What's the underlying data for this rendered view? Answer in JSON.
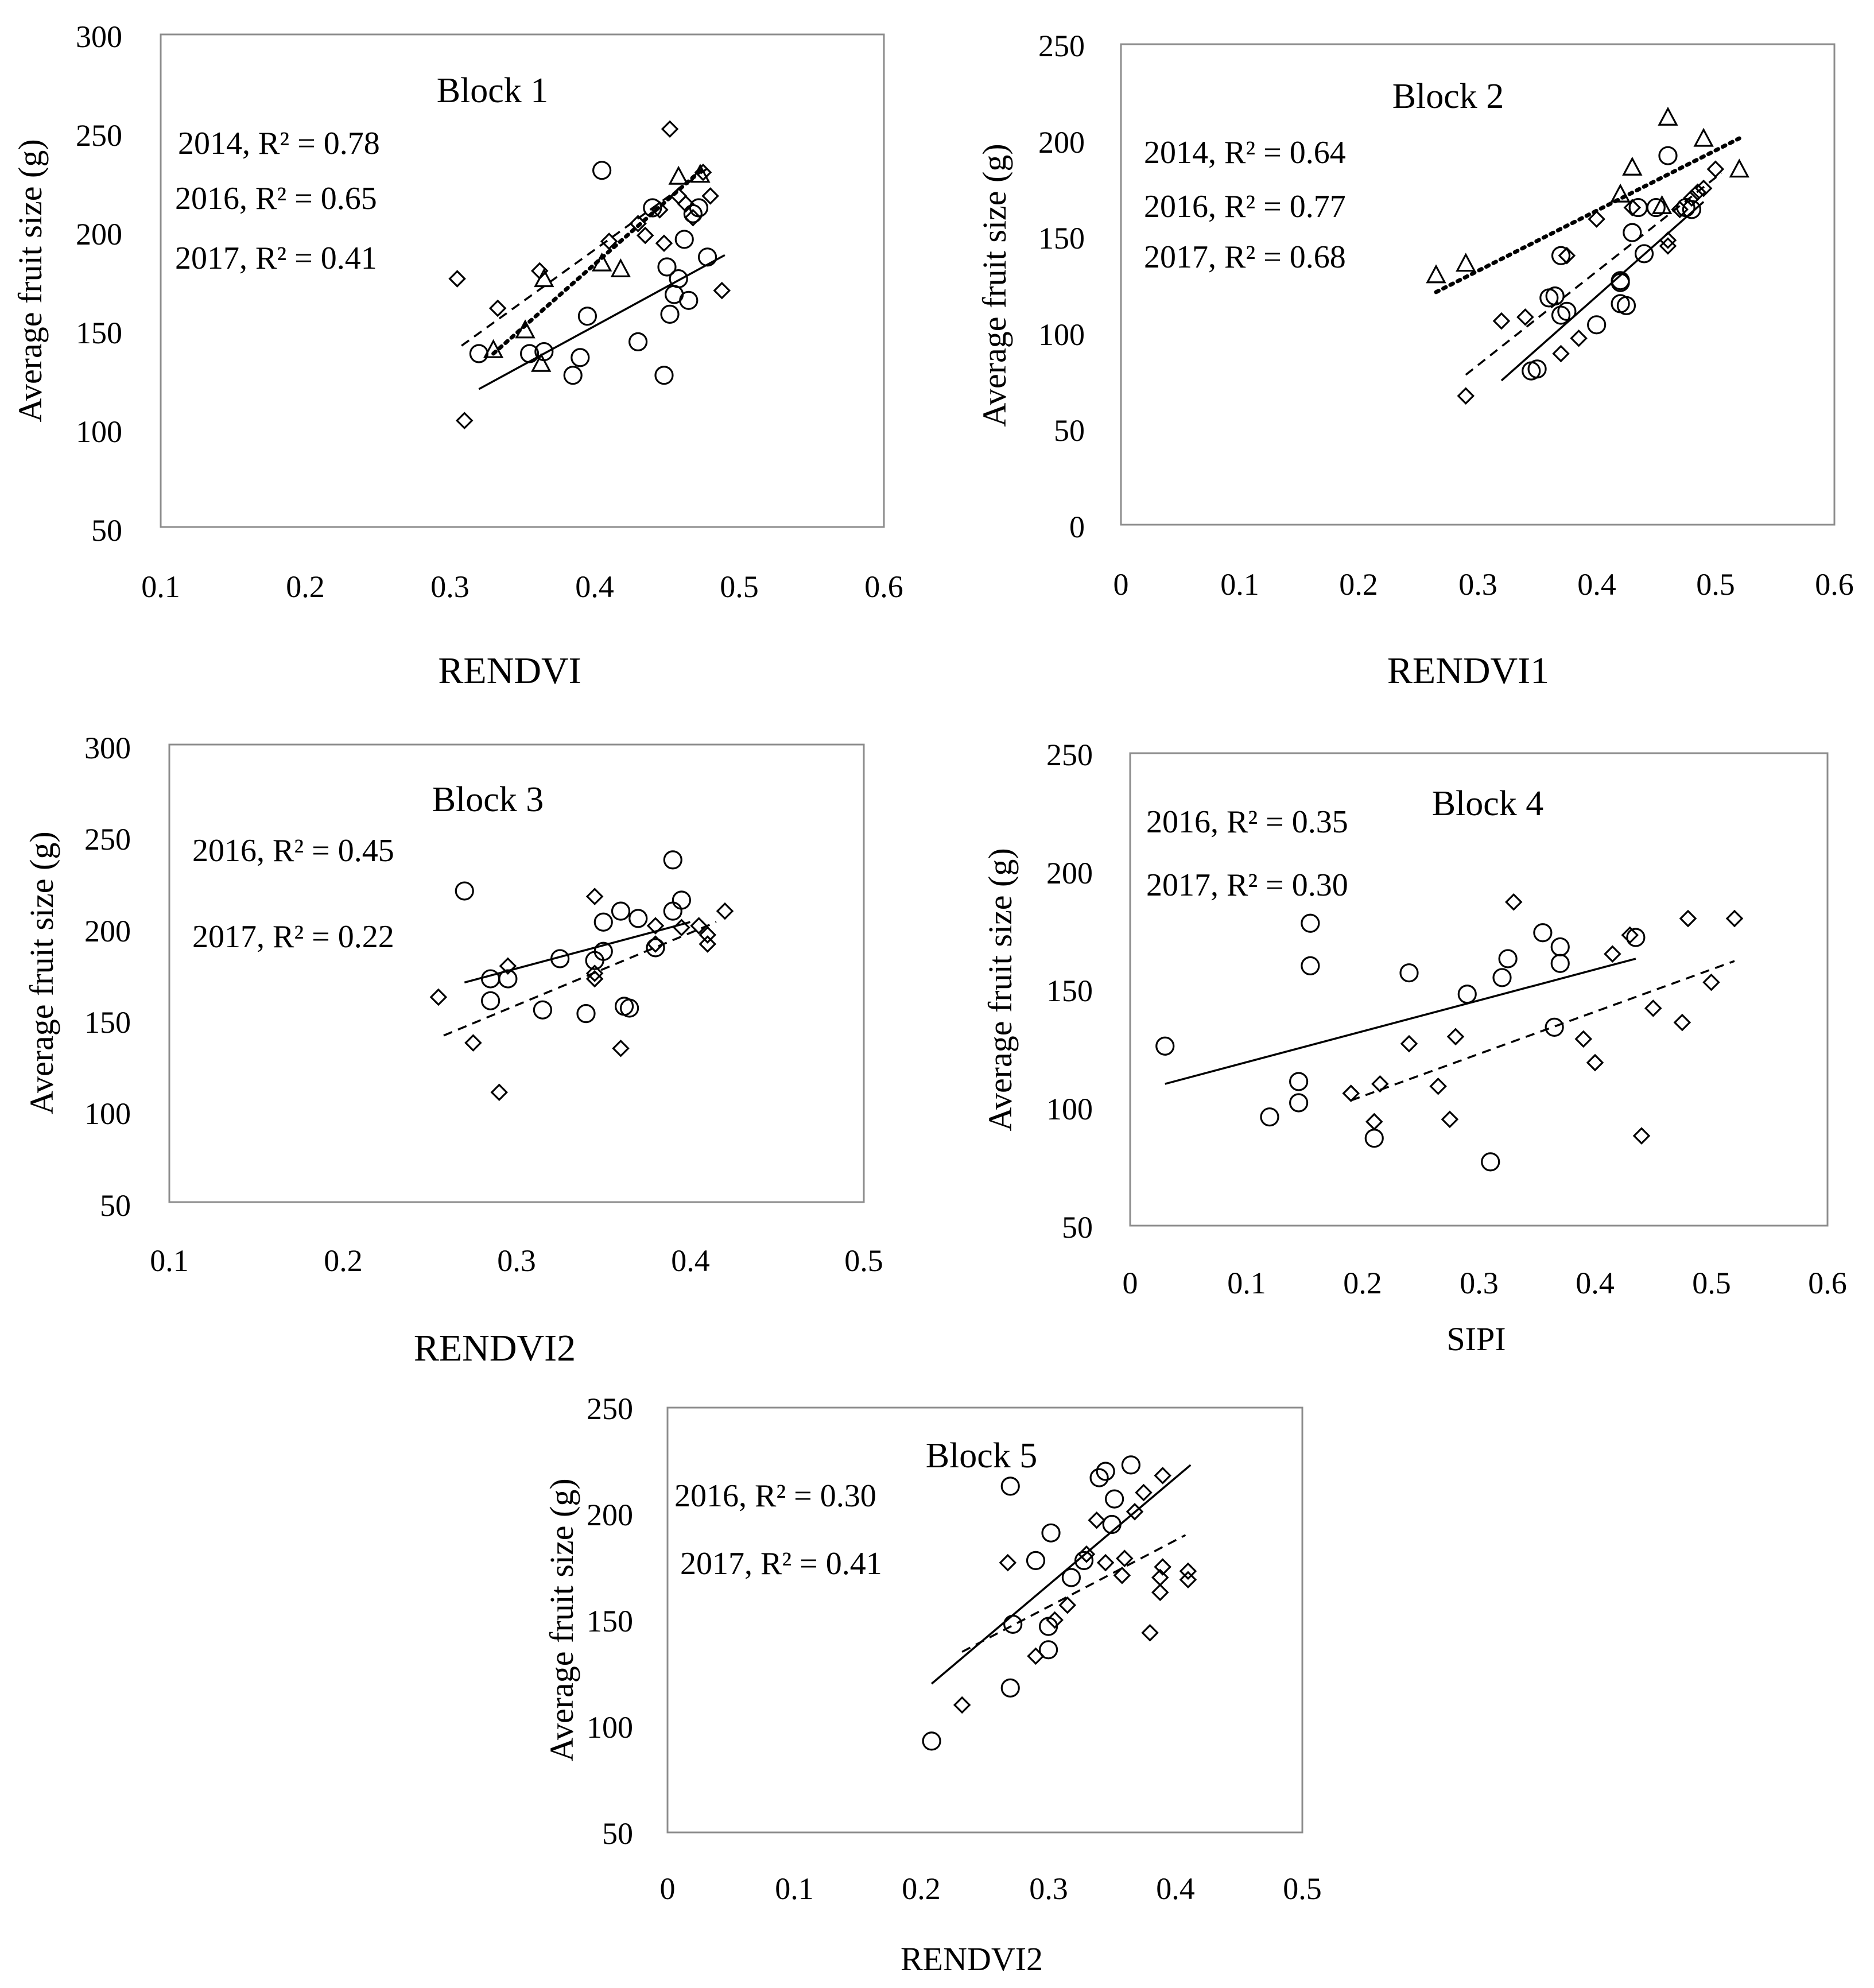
{
  "chart_data": [
    {
      "type": "scatter",
      "title": "Block 1",
      "xlabel": "RENDVI",
      "ylabel": "Average fruit size (g)",
      "xlim": [
        0.1,
        0.6
      ],
      "ylim": [
        50,
        300
      ],
      "xticks": [
        "0.1",
        "0.2",
        "0.3",
        "0.4",
        "0.5",
        "0.6"
      ],
      "yticks": [
        "50",
        "100",
        "150",
        "200",
        "250",
        "300"
      ],
      "annotations": [
        "2014, R² = 0.78",
        "2016, R² = 0.65",
        "2017, R² = 0.41"
      ],
      "series": [
        {
          "name": "2014",
          "marker": "triangle",
          "line": "dotted",
          "points": [
            [
              0.33,
              140
            ],
            [
              0.352,
              150
            ],
            [
              0.363,
              133
            ],
            [
              0.365,
              176
            ],
            [
              0.405,
              184
            ],
            [
              0.418,
              181
            ],
            [
              0.458,
              228
            ],
            [
              0.473,
              229
            ]
          ],
          "trend": [
            [
              0.33,
              138
            ],
            [
              0.475,
              232
            ]
          ]
        },
        {
          "name": "2016",
          "marker": "diamond",
          "line": "dashed",
          "points": [
            [
              0.305,
              176
            ],
            [
              0.31,
              104
            ],
            [
              0.333,
              161
            ],
            [
              0.362,
              180
            ],
            [
              0.41,
              195
            ],
            [
              0.43,
              204
            ],
            [
              0.435,
              198
            ],
            [
              0.445,
              211
            ],
            [
              0.448,
              194
            ],
            [
              0.452,
              252
            ],
            [
              0.458,
              218
            ],
            [
              0.463,
              214
            ],
            [
              0.468,
              207
            ],
            [
              0.475,
              230
            ],
            [
              0.48,
              218
            ],
            [
              0.488,
              170
            ]
          ],
          "trend": [
            [
              0.308,
              142
            ],
            [
              0.478,
              232
            ]
          ]
        },
        {
          "name": "2017",
          "marker": "circle",
          "line": "solid",
          "points": [
            [
              0.32,
              138
            ],
            [
              0.355,
              138
            ],
            [
              0.365,
              139
            ],
            [
              0.385,
              127
            ],
            [
              0.39,
              136
            ],
            [
              0.395,
              157
            ],
            [
              0.405,
              231
            ],
            [
              0.43,
              144
            ],
            [
              0.44,
              212
            ],
            [
              0.448,
              127
            ],
            [
              0.45,
              182
            ],
            [
              0.452,
              158
            ],
            [
              0.455,
              168
            ],
            [
              0.458,
              176
            ],
            [
              0.462,
              196
            ],
            [
              0.465,
              165
            ],
            [
              0.468,
              209
            ],
            [
              0.472,
              212
            ],
            [
              0.478,
              187
            ]
          ],
          "trend": [
            [
              0.32,
              120
            ],
            [
              0.49,
              188
            ]
          ]
        }
      ]
    },
    {
      "type": "scatter",
      "title": "Block 2",
      "xlabel": "RENDVI1",
      "ylabel": "Average fruit size (g)",
      "xlim": [
        0,
        0.6
      ],
      "ylim": [
        0,
        250
      ],
      "xticks": [
        "0",
        "0.1",
        "0.2",
        "0.3",
        "0.4",
        "0.5",
        "0.6"
      ],
      "yticks": [
        "0",
        "50",
        "100",
        "150",
        "200",
        "250"
      ],
      "annotations": [
        "2014, R² = 0.64",
        "2016, R² = 0.77",
        "2017, R² = 0.68"
      ],
      "series": [
        {
          "name": "2014",
          "marker": "triangle",
          "line": "dotted",
          "points": [
            [
              0.265,
              130
            ],
            [
              0.29,
              136
            ],
            [
              0.42,
              172
            ],
            [
              0.43,
              186
            ],
            [
              0.455,
              166
            ],
            [
              0.46,
              212
            ],
            [
              0.49,
              201
            ],
            [
              0.52,
              185
            ]
          ],
          "trend": [
            [
              0.265,
              121
            ],
            [
              0.52,
              201
            ]
          ]
        },
        {
          "name": "2016",
          "marker": "diamond",
          "line": "dashed",
          "points": [
            [
              0.29,
              67
            ],
            [
              0.32,
              106
            ],
            [
              0.34,
              108
            ],
            [
              0.37,
              89
            ],
            [
              0.375,
              140
            ],
            [
              0.385,
              97
            ],
            [
              0.4,
              159
            ],
            [
              0.43,
              165
            ],
            [
              0.46,
              148
            ],
            [
              0.47,
              164
            ],
            [
              0.48,
              170
            ],
            [
              0.485,
              173
            ],
            [
              0.49,
              175
            ],
            [
              0.5,
              185
            ],
            [
              0.46,
              145
            ]
          ],
          "trend": [
            [
              0.29,
              78
            ],
            [
              0.505,
              183
            ]
          ]
        },
        {
          "name": "2017",
          "marker": "circle",
          "line": "solid",
          "points": [
            [
              0.345,
              80
            ],
            [
              0.35,
              81
            ],
            [
              0.36,
              118
            ],
            [
              0.365,
              119
            ],
            [
              0.37,
              140
            ],
            [
              0.375,
              111
            ],
            [
              0.37,
              109
            ],
            [
              0.4,
              104
            ],
            [
              0.42,
              127
            ],
            [
              0.42,
              126
            ],
            [
              0.42,
              115
            ],
            [
              0.425,
              114
            ],
            [
              0.43,
              152
            ],
            [
              0.435,
              165
            ],
            [
              0.44,
              141
            ],
            [
              0.45,
              165
            ],
            [
              0.46,
              192
            ],
            [
              0.475,
              165
            ],
            [
              0.48,
              164
            ]
          ],
          "trend": [
            [
              0.32,
              75
            ],
            [
              0.49,
              168
            ]
          ]
        }
      ]
    },
    {
      "type": "scatter",
      "title": "Block 3",
      "xlabel": "RENDVI2",
      "ylabel": "Average fruit size (g)",
      "xlim": [
        0.1,
        0.5
      ],
      "ylim": [
        50,
        300
      ],
      "xticks": [
        "0.1",
        "0.2",
        "0.3",
        "0.4",
        "0.5"
      ],
      "yticks": [
        "50",
        "100",
        "150",
        "200",
        "250",
        "300"
      ],
      "annotations": [
        "2016, R² = 0.45",
        "2017, R² = 0.22"
      ],
      "series": [
        {
          "name": "2016",
          "marker": "circle",
          "line": "solid",
          "points": [
            [
              0.27,
              220
            ],
            [
              0.285,
              172
            ],
            [
              0.285,
              160
            ],
            [
              0.295,
              172
            ],
            [
              0.315,
              155
            ],
            [
              0.325,
              183
            ],
            [
              0.34,
              153
            ],
            [
              0.345,
              182
            ],
            [
              0.35,
              203
            ],
            [
              0.35,
              187
            ],
            [
              0.36,
              209
            ],
            [
              0.362,
              157
            ],
            [
              0.365,
              156
            ],
            [
              0.37,
              205
            ],
            [
              0.38,
              189
            ],
            [
              0.39,
              237
            ],
            [
              0.39,
              209
            ],
            [
              0.395,
              215
            ]
          ],
          "trend": [
            [
              0.27,
              170
            ],
            [
              0.4,
              203
            ]
          ]
        },
        {
          "name": "2017",
          "marker": "diamond",
          "line": "dashed",
          "points": [
            [
              0.255,
              162
            ],
            [
              0.275,
              137
            ],
            [
              0.29,
              110
            ],
            [
              0.295,
              179
            ],
            [
              0.345,
              217
            ],
            [
              0.345,
              175
            ],
            [
              0.345,
              172
            ],
            [
              0.36,
              134
            ],
            [
              0.38,
              191
            ],
            [
              0.38,
              201
            ],
            [
              0.395,
              200
            ],
            [
              0.405,
              201
            ],
            [
              0.41,
              196
            ],
            [
              0.41,
              191
            ],
            [
              0.42,
              209
            ]
          ],
          "trend": [
            [
              0.258,
              141
            ],
            [
              0.415,
              203
            ]
          ]
        }
      ]
    },
    {
      "type": "scatter",
      "title": "Block 4",
      "xlabel": "SIPI",
      "ylabel": "Average fruit size (g)",
      "xlim": [
        0,
        0.6
      ],
      "ylim": [
        50,
        250
      ],
      "xticks": [
        "0",
        "0.1",
        "0.2",
        "0.3",
        "0.4",
        "0.5",
        "0.6"
      ],
      "yticks": [
        "50",
        "100",
        "150",
        "200",
        "250"
      ],
      "annotations": [
        "2016, R² = 0.35",
        "2017, R² = 0.30"
      ],
      "series": [
        {
          "name": "2016",
          "marker": "circle",
          "line": "solid",
          "points": [
            [
              0.03,
              126
            ],
            [
              0.12,
              96
            ],
            [
              0.145,
              111
            ],
            [
              0.145,
              102
            ],
            [
              0.155,
              178
            ],
            [
              0.155,
              160
            ],
            [
              0.21,
              87
            ],
            [
              0.24,
              157
            ],
            [
              0.29,
              148
            ],
            [
              0.31,
              77
            ],
            [
              0.32,
              155
            ],
            [
              0.325,
              163
            ],
            [
              0.355,
              174
            ],
            [
              0.365,
              134
            ],
            [
              0.37,
              161
            ],
            [
              0.37,
              168
            ],
            [
              0.435,
              172
            ]
          ],
          "trend": [
            [
              0.03,
              110
            ],
            [
              0.435,
              163
            ]
          ]
        },
        {
          "name": "2017",
          "marker": "diamond",
          "line": "dashed",
          "points": [
            [
              0.19,
              106
            ],
            [
              0.21,
              94
            ],
            [
              0.215,
              110
            ],
            [
              0.24,
              127
            ],
            [
              0.265,
              109
            ],
            [
              0.275,
              95
            ],
            [
              0.28,
              130
            ],
            [
              0.33,
              187
            ],
            [
              0.39,
              129
            ],
            [
              0.4,
              119
            ],
            [
              0.415,
              165
            ],
            [
              0.43,
              173
            ],
            [
              0.44,
              88
            ],
            [
              0.45,
              142
            ],
            [
              0.475,
              136
            ],
            [
              0.48,
              180
            ],
            [
              0.5,
              153
            ],
            [
              0.52,
              180
            ]
          ],
          "trend": [
            [
              0.19,
              103
            ],
            [
              0.52,
              162
            ]
          ]
        }
      ]
    },
    {
      "type": "scatter",
      "title": "Block 5",
      "xlabel": "RENDVI2",
      "ylabel": "Average fruit size (g)",
      "xlim": [
        0,
        0.5
      ],
      "ylim": [
        50,
        250
      ],
      "xticks": [
        "0",
        "0.1",
        "0.2",
        "0.3",
        "0.4",
        "0.5"
      ],
      "yticks": [
        "50",
        "100",
        "150",
        "200",
        "250"
      ],
      "annotations": [
        "2016, R² = 0.30",
        "2017, R² = 0.41"
      ],
      "series": [
        {
          "name": "2016",
          "marker": "circle",
          "line": "solid",
          "points": [
            [
              0.208,
              93
            ],
            [
              0.27,
              213
            ],
            [
              0.27,
              118
            ],
            [
              0.272,
              148
            ],
            [
              0.29,
              178
            ],
            [
              0.3,
              136
            ],
            [
              0.3,
              147
            ],
            [
              0.302,
              191
            ],
            [
              0.318,
              170
            ],
            [
              0.328,
              178
            ],
            [
              0.34,
              217
            ],
            [
              0.345,
              220
            ],
            [
              0.35,
              195
            ],
            [
              0.352,
              207
            ],
            [
              0.365,
              223
            ]
          ],
          "trend": [
            [
              0.208,
              120
            ],
            [
              0.412,
              223
            ]
          ]
        },
        {
          "name": "2017",
          "marker": "diamond",
          "line": "dashed",
          "points": [
            [
              0.232,
              110
            ],
            [
              0.268,
              177
            ],
            [
              0.29,
              133
            ],
            [
              0.305,
              150
            ],
            [
              0.315,
              157
            ],
            [
              0.33,
              181
            ],
            [
              0.338,
              197
            ],
            [
              0.345,
              177
            ],
            [
              0.358,
              171
            ],
            [
              0.36,
              179
            ],
            [
              0.368,
              201
            ],
            [
              0.375,
              210
            ],
            [
              0.38,
              144
            ],
            [
              0.388,
              170
            ],
            [
              0.388,
              163
            ],
            [
              0.39,
              175
            ],
            [
              0.39,
              218
            ],
            [
              0.41,
              173
            ],
            [
              0.41,
              169
            ]
          ],
          "trend": [
            [
              0.232,
              135
            ],
            [
              0.408,
              190
            ]
          ]
        }
      ]
    }
  ]
}
